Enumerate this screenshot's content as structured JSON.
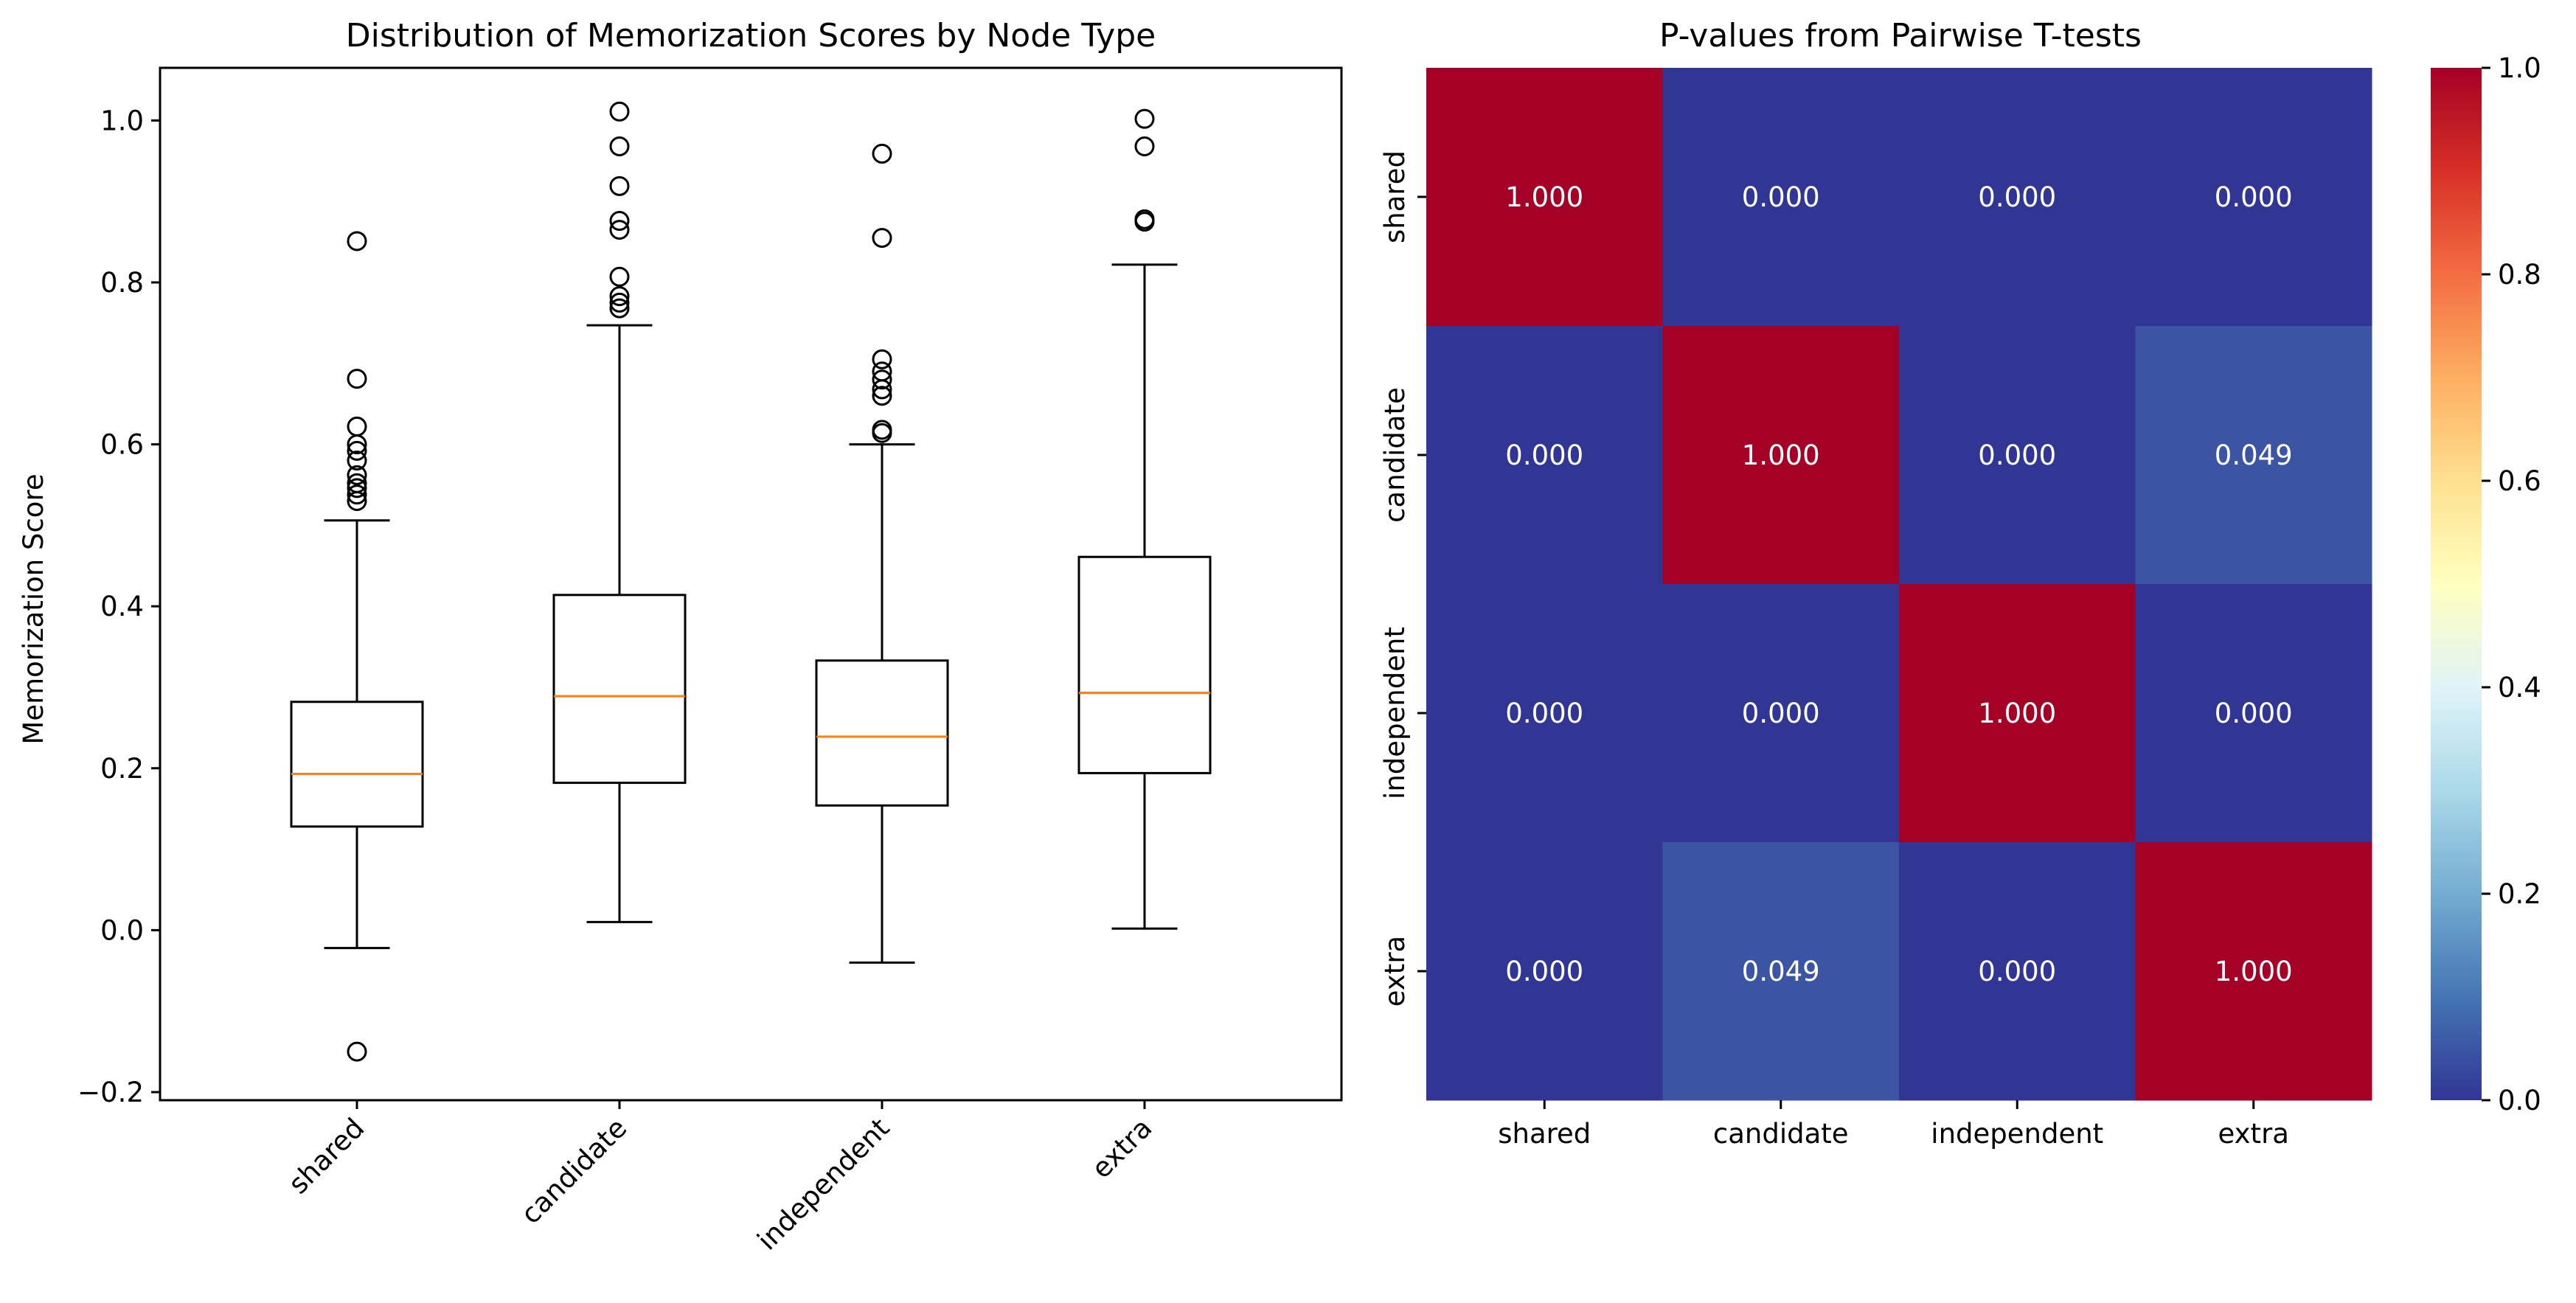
{
  "chart_data": [
    {
      "type": "box",
      "title": "Distribution of Memorization Scores by Node Type",
      "xlabel": "",
      "ylabel": "Memorization Score",
      "ylim": [
        -0.21,
        1.065
      ],
      "yticks": [
        -0.2,
        0.0,
        0.2,
        0.4,
        0.6,
        0.8,
        1.0
      ],
      "ytick_labels": [
        "−0.2",
        "0.0",
        "0.2",
        "0.4",
        "0.6",
        "0.8",
        "1.0"
      ],
      "categories": [
        "shared",
        "candidate",
        "independent",
        "extra"
      ],
      "tick_rotation": 45,
      "grid": false,
      "colors": {
        "box": "#000000",
        "median": "#ff7f0e",
        "flier": "#000000"
      },
      "boxes": [
        {
          "name": "shared",
          "whislo": -0.022,
          "q1": 0.128,
          "med": 0.193,
          "q3": 0.282,
          "whishi": 0.506,
          "fliers": [
            0.851,
            0.681,
            0.622,
            0.6,
            0.592,
            0.58,
            0.562,
            0.552,
            0.546,
            0.538,
            0.53,
            -0.15
          ]
        },
        {
          "name": "candidate",
          "whislo": 0.01,
          "q1": 0.182,
          "med": 0.289,
          "q3": 0.414,
          "whishi": 0.747,
          "fliers": [
            1.011,
            0.968,
            0.919,
            0.876,
            0.865,
            0.807,
            0.783,
            0.775,
            0.768
          ]
        },
        {
          "name": "independent",
          "whislo": -0.04,
          "q1": 0.154,
          "med": 0.239,
          "q3": 0.333,
          "whishi": 0.6,
          "fliers": [
            0.959,
            0.855,
            0.705,
            0.69,
            0.68,
            0.668,
            0.66,
            0.618,
            0.614
          ]
        },
        {
          "name": "extra",
          "whislo": 0.002,
          "q1": 0.194,
          "med": 0.293,
          "q3": 0.461,
          "whishi": 0.822,
          "fliers": [
            1.002,
            0.968,
            0.878,
            0.875
          ]
        }
      ]
    },
    {
      "type": "heatmap",
      "title": "P-values from Pairwise T-tests",
      "xlabel": "",
      "ylabel": "",
      "x_labels": [
        "shared",
        "candidate",
        "independent",
        "extra"
      ],
      "y_labels": [
        "shared",
        "candidate",
        "independent",
        "extra"
      ],
      "values": [
        [
          1.0,
          0.0,
          0.0,
          0.0
        ],
        [
          0.0,
          1.0,
          0.0,
          0.049
        ],
        [
          0.0,
          0.0,
          1.0,
          0.0
        ],
        [
          0.0,
          0.049,
          0.0,
          1.0
        ]
      ],
      "annotations": [
        [
          "1.000",
          "0.000",
          "0.000",
          "0.000"
        ],
        [
          "0.000",
          "1.000",
          "0.000",
          "0.049"
        ],
        [
          "0.000",
          "0.000",
          "1.000",
          "0.000"
        ],
        [
          "0.000",
          "0.049",
          "0.000",
          "1.000"
        ]
      ],
      "colormap": "RdYlBu_r",
      "vmin": 0.0,
      "vmax": 1.0,
      "colorbar_ticks": [
        0.0,
        0.2,
        0.4,
        0.6,
        0.8,
        1.0
      ],
      "colorbar_tick_labels": [
        "0.0",
        "0.2",
        "0.4",
        "0.6",
        "0.8",
        "1.0"
      ],
      "colormap_stops": [
        "#313695",
        "#4575b4",
        "#74add1",
        "#abd9e9",
        "#e0f3f8",
        "#ffffbf",
        "#fee090",
        "#fdae61",
        "#f46d43",
        "#d73027",
        "#a50026"
      ]
    }
  ]
}
